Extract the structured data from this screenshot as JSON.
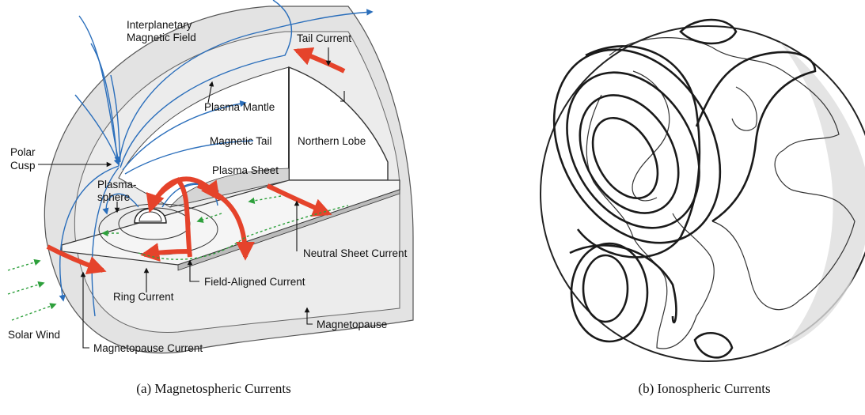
{
  "panels": [
    {
      "caption": "(a) Magnetospheric Currents",
      "labels": {
        "imf": [
          "Interplanetary",
          "Magnetic Field"
        ],
        "tail_current": "Tail Current",
        "plasma_mantle": "Plasma Mantle",
        "magnetic_tail": "Magnetic Tail",
        "northern_lobe": "Northern Lobe",
        "polar_cusp": [
          "Polar",
          "Cusp"
        ],
        "plasma_sheet": "Plasma Sheet",
        "plasmasphere": [
          "Plasma-",
          "sphere"
        ],
        "neutral_sheet_current": "Neutral Sheet Current",
        "field_aligned_current": "Field-Aligned Current",
        "ring_current": "Ring Current",
        "solar_wind": "Solar Wind",
        "magnetopause": "Magnetopause",
        "magnetopause_current": "Magnetopause Current"
      }
    },
    {
      "caption": "(b) Ionospheric Currents"
    }
  ]
}
